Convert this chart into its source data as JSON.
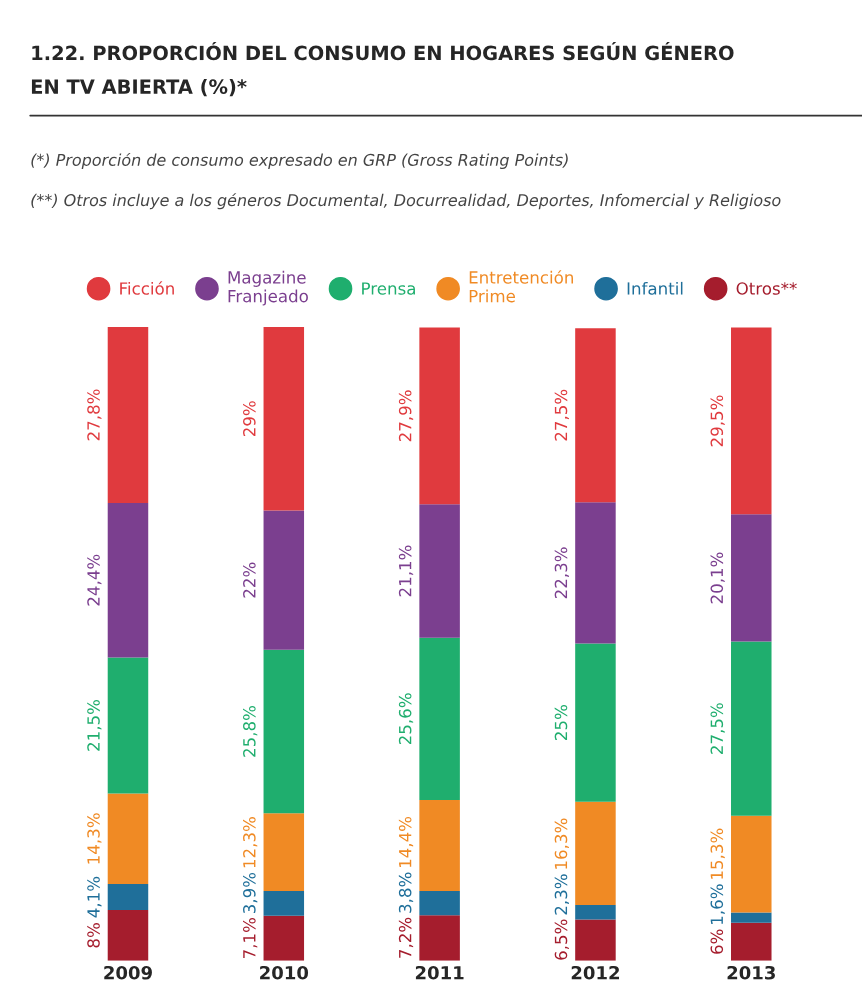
{
  "chart_data": {
    "type": "bar",
    "stacked": true,
    "title": "1.22. PROPORCIÓN DEL CONSUMO EN HOGARES SEGÚN GÉNERO\nEN TV ABIERTA (%)*",
    "annotations": [
      "(*) Proporción de consumo expresado en GRP (Gross Rating Points)",
      "(**) Otros incluye a los géneros Documental, Docurrealidad, Deportes, Infomercial y Religioso"
    ],
    "categories": [
      "2009",
      "2010",
      "2011",
      "2012",
      "2013"
    ],
    "series": [
      {
        "name": "Otros**",
        "color": "#a51d2d",
        "values": [
          8,
          7.1,
          7.2,
          6.5,
          6
        ],
        "value_labels": [
          "8%",
          "7,1%",
          "7,2%",
          "6,5%",
          "6%"
        ]
      },
      {
        "name": "Infantil",
        "color": "#1f6f9a",
        "values": [
          4.1,
          3.9,
          3.8,
          2.3,
          1.6
        ],
        "value_labels": [
          "4,1%",
          "3,9%",
          "3,8%",
          "2,3%",
          "1,6%"
        ]
      },
      {
        "name": "Entretención\nPrime",
        "color": "#f08a24",
        "values": [
          14.3,
          12.3,
          14.4,
          16.3,
          15.3
        ],
        "value_labels": [
          "14,3%",
          "12,3%",
          "14,4%",
          "16,3%",
          "15,3%"
        ]
      },
      {
        "name": "Prensa",
        "color": "#1fae6e",
        "values": [
          21.5,
          25.8,
          25.6,
          25,
          27.5
        ],
        "value_labels": [
          "21,5%",
          "25,8%",
          "25,6%",
          "25%",
          "27,5%"
        ]
      },
      {
        "name": "Magazine\nFranjeado",
        "color": "#7b3f8f",
        "values": [
          24.4,
          22,
          21.1,
          22.3,
          20.1
        ],
        "value_labels": [
          "24,4%",
          "22%",
          "21,1%",
          "22,3%",
          "20,1%"
        ]
      },
      {
        "name": "Ficción",
        "color": "#e03a3e",
        "values": [
          27.8,
          29,
          27.9,
          27.5,
          29.5
        ],
        "value_labels": [
          "27,8%",
          "29%",
          "27,9%",
          "27,5%",
          "29,5%"
        ]
      }
    ],
    "legend": "top",
    "grid": false,
    "tick_labels": "x"
  }
}
